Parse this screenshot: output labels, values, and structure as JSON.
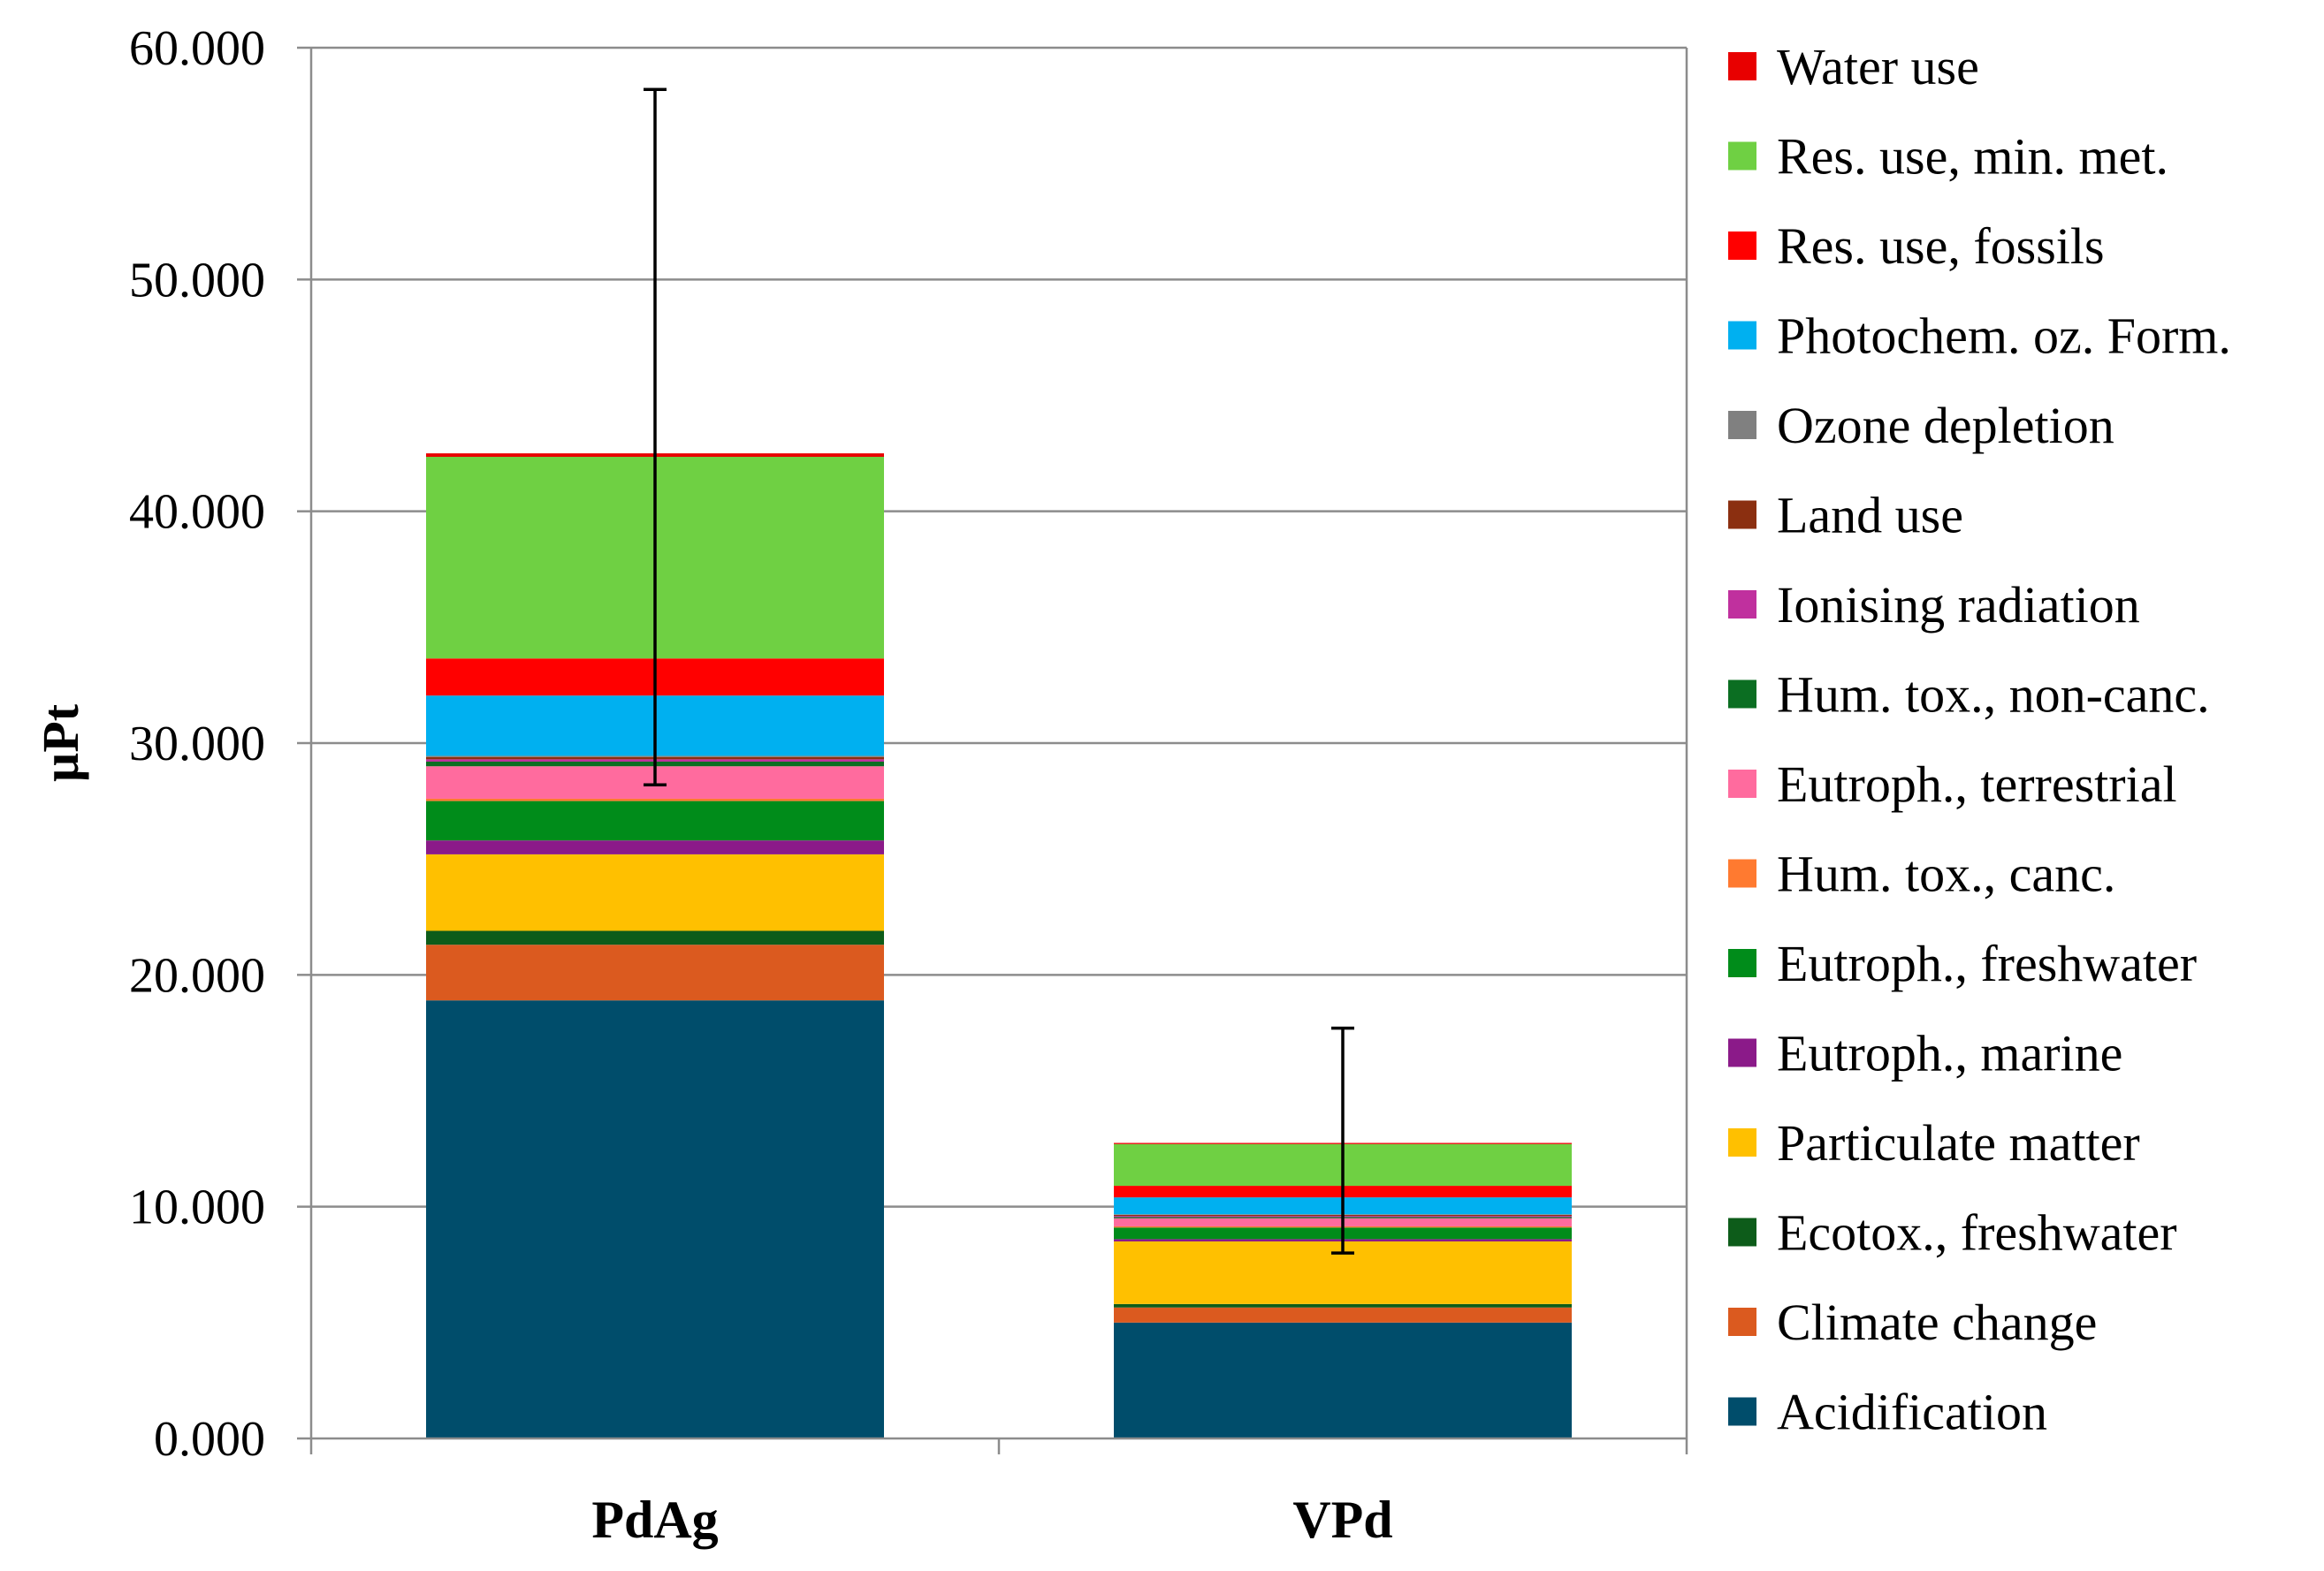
{
  "chart_data": {
    "type": "bar",
    "stacked": true,
    "title": "",
    "xlabel": "",
    "ylabel": "µPt",
    "ylim": [
      0,
      60
    ],
    "yticks": [
      "0.000",
      "10.000",
      "20.000",
      "30.000",
      "40.000",
      "50.000",
      "60.000"
    ],
    "ytick_values": [
      0,
      10,
      20,
      30,
      40,
      50,
      60
    ],
    "grid": true,
    "legend_position": "right",
    "categories": [
      "PdAg",
      "VPd"
    ],
    "series": [
      {
        "name": "Acidification",
        "color": "#004d6b",
        "values": [
          18.9,
          5.0
        ]
      },
      {
        "name": "Climate change",
        "color": "#db5a1f",
        "values": [
          2.4,
          0.65
        ]
      },
      {
        "name": "Ecotox., freshwater",
        "color": "#0d5c1a",
        "values": [
          0.6,
          0.15
        ]
      },
      {
        "name": "Particulate matter",
        "color": "#ffc000",
        "values": [
          3.3,
          2.7
        ]
      },
      {
        "name": "Eutroph., marine",
        "color": "#8b1a89",
        "values": [
          0.6,
          0.1
        ]
      },
      {
        "name": "Eutroph., freshwater",
        "color": "#008c1a",
        "values": [
          1.7,
          0.5
        ]
      },
      {
        "name": "Hum. tox., canc.",
        "color": "#ff7a30",
        "values": [
          0.1,
          0.05
        ]
      },
      {
        "name": "Eutroph., terrestrial",
        "color": "#ff6b9e",
        "values": [
          1.4,
          0.35
        ]
      },
      {
        "name": "Hum. tox., non-canc.",
        "color": "#0b6e22",
        "values": [
          0.2,
          0.05
        ]
      },
      {
        "name": "Ionising radiation",
        "color": "#c0309e",
        "values": [
          0.1,
          0.05
        ]
      },
      {
        "name": "Land use",
        "color": "#8b2f10",
        "values": [
          0.1,
          0.05
        ]
      },
      {
        "name": "Ozone depletion",
        "color": "#808080",
        "values": [
          0.05,
          0.02
        ]
      },
      {
        "name": "Photochem. oz. Form.",
        "color": "#00b0f0",
        "values": [
          2.6,
          0.73
        ]
      },
      {
        "name": "Res. use, fossils",
        "color": "#ff0000",
        "values": [
          1.6,
          0.5
        ]
      },
      {
        "name": "Res. use, min. met.",
        "color": "#6fd043",
        "values": [
          8.7,
          1.8
        ]
      },
      {
        "name": "Water use",
        "color": "#e80000",
        "values": [
          0.15,
          0.05
        ]
      }
    ],
    "error_bars": [
      {
        "category": "PdAg",
        "low": 28.2,
        "high": 58.2
      },
      {
        "category": "VPd",
        "low": 8.0,
        "high": 17.7
      }
    ]
  }
}
